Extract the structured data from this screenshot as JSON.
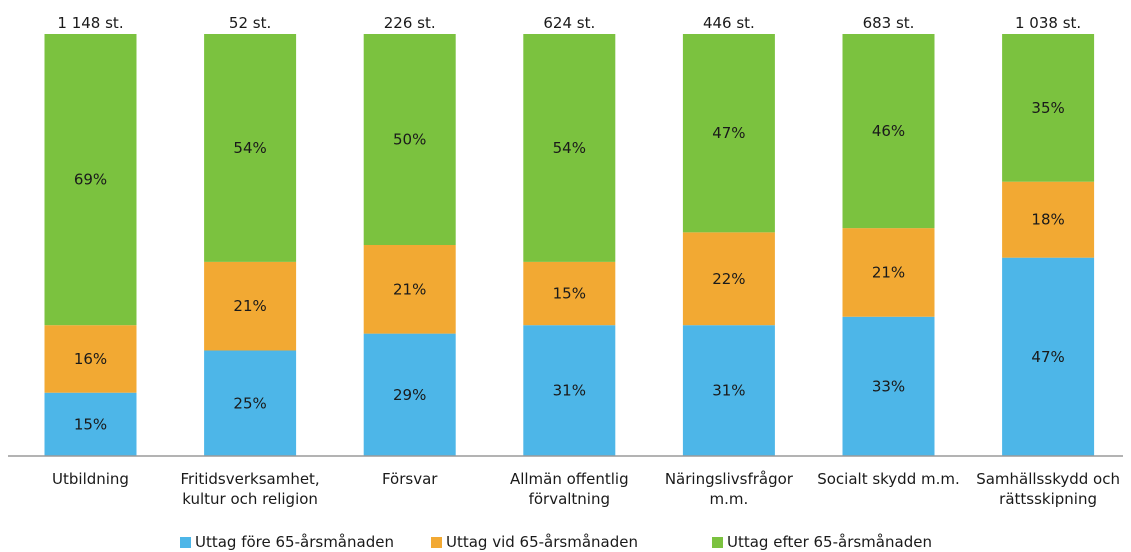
{
  "chart_data": {
    "type": "bar",
    "stacked": true,
    "normalized": true,
    "categories": [
      [
        "Utbildning"
      ],
      [
        "Fritidsverksamhet,",
        "kultur och religion"
      ],
      [
        "Försvar"
      ],
      [
        "Allmän offentlig",
        "förvaltning"
      ],
      [
        "Näringslivsfrågor",
        "m.m."
      ],
      [
        "Socialt skydd m.m."
      ],
      [
        "Samhällsskydd och",
        "rättsskipning"
      ]
    ],
    "totals": [
      "1 148 st.",
      "52 st.",
      "226 st.",
      "624 st.",
      "446 st.",
      "683 st.",
      "1 038 st."
    ],
    "series": [
      {
        "name": "Uttag före 65-årsmånaden",
        "color": "#4db6e8",
        "values": [
          15,
          25,
          29,
          31,
          31,
          33,
          47
        ]
      },
      {
        "name": "Uttag vid 65-årsmånaden",
        "color": "#f2a933",
        "values": [
          16,
          21,
          21,
          15,
          22,
          21,
          18
        ]
      },
      {
        "name": "Uttag efter 65-årsmånaden",
        "color": "#7bc23f",
        "values": [
          69,
          54,
          50,
          54,
          47,
          46,
          35
        ]
      }
    ],
    "value_suffix": "%",
    "legend_position": "bottom",
    "grid": false
  }
}
